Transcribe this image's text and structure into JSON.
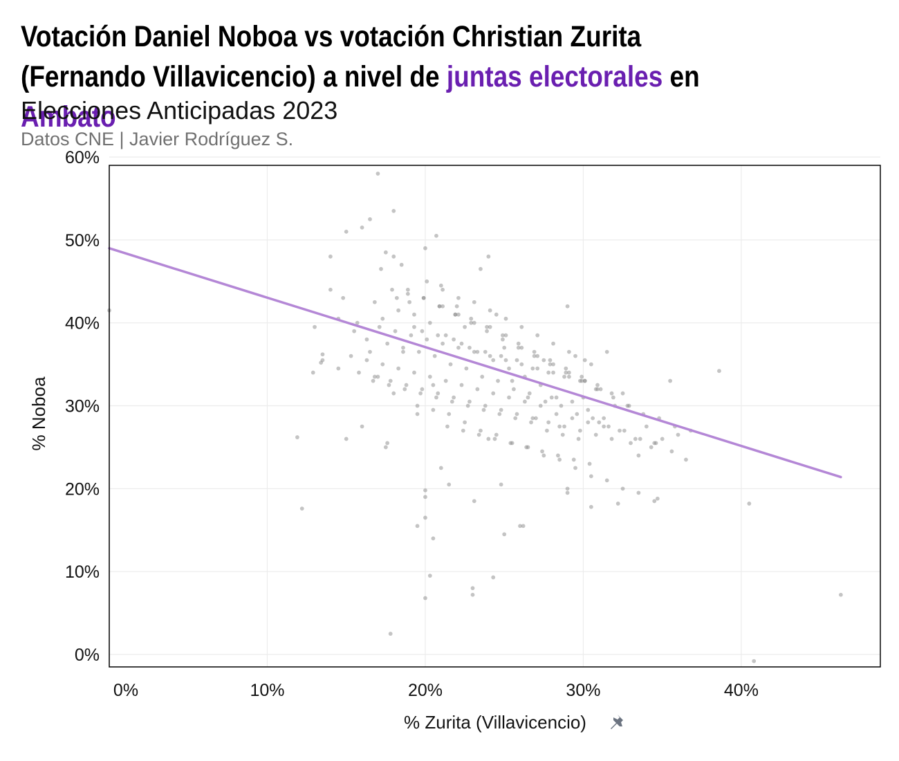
{
  "header": {
    "title_part1": "Votación Daniel Noboa vs votación Christian Zurita (Fernando Villavicencio) a nivel de ",
    "title_hl1": "juntas electorales",
    "title_part2": " en ",
    "title_hl2": "Ambato",
    "subtitle": "Elecciones Anticipadas 2023",
    "caption": "Datos CNE | Javier Rodríguez S."
  },
  "colors": {
    "highlight": "#6a1fb0",
    "trend_line": "#b487d6",
    "points": "#8a8a8a",
    "grid": "#ececec",
    "pin_icon": "#6b7380"
  },
  "icons": {
    "xlabel_icon": "pushpin-icon"
  },
  "chart_data": {
    "type": "scatter",
    "title": "Votación Daniel Noboa vs votación Christian Zurita (Fernando Villavicencio) a nivel de juntas electorales en Ambato",
    "subtitle": "Elecciones Anticipadas 2023",
    "xlabel": "% Zurita (Villavicencio)",
    "ylabel": "% Noboa",
    "xlim": [
      0,
      0.488
    ],
    "ylim": [
      -0.015,
      0.59
    ],
    "xticks": [
      0,
      0.1,
      0.2,
      0.3,
      0.4
    ],
    "xtick_labels": [
      "0%",
      "10%",
      "20%",
      "30%",
      "40%"
    ],
    "yticks": [
      0,
      0.1,
      0.2,
      0.3,
      0.4,
      0.5,
      0.6
    ],
    "ytick_labels": [
      "0%",
      "10%",
      "20%",
      "30%",
      "40%",
      "50%",
      "60%"
    ],
    "grid": true,
    "trend_line": {
      "x": [
        0,
        0.463
      ],
      "y": [
        0.49,
        0.214
      ]
    },
    "points_x": [
      0.0,
      0.119,
      0.122,
      0.129,
      0.13,
      0.134,
      0.135,
      0.14,
      0.14,
      0.145,
      0.15,
      0.15,
      0.155,
      0.16,
      0.16,
      0.165,
      0.165,
      0.17,
      0.17,
      0.175,
      0.175,
      0.178,
      0.18,
      0.18,
      0.18,
      0.185,
      0.19,
      0.195,
      0.2,
      0.2,
      0.2,
      0.203,
      0.205,
      0.21,
      0.21,
      0.215,
      0.22,
      0.225,
      0.23,
      0.235,
      0.24,
      0.24,
      0.245,
      0.25,
      0.25,
      0.255,
      0.26,
      0.265,
      0.27,
      0.275,
      0.28,
      0.285,
      0.29,
      0.29,
      0.295,
      0.3,
      0.305,
      0.31,
      0.315,
      0.32,
      0.325,
      0.33,
      0.335,
      0.34,
      0.345,
      0.35,
      0.355,
      0.36,
      0.365,
      0.386,
      0.405,
      0.408,
      0.463,
      0.2,
      0.23,
      0.231,
      0.243,
      0.176,
      0.205,
      0.207,
      0.2,
      0.195,
      0.262,
      0.248,
      0.29,
      0.305,
      0.322,
      0.347,
      0.182,
      0.193,
      0.172,
      0.168,
      0.157,
      0.148,
      0.135,
      0.145,
      0.163,
      0.176,
      0.186,
      0.198,
      0.208,
      0.218,
      0.228,
      0.238,
      0.248,
      0.258,
      0.268,
      0.278,
      0.288,
      0.298,
      0.308,
      0.318,
      0.328,
      0.338,
      0.348,
      0.358,
      0.368,
      0.211,
      0.221,
      0.231,
      0.241,
      0.251,
      0.261,
      0.271,
      0.281,
      0.291,
      0.301,
      0.311,
      0.173,
      0.183,
      0.193,
      0.203,
      0.213,
      0.223,
      0.233,
      0.243,
      0.253,
      0.263,
      0.273,
      0.283,
      0.293,
      0.303,
      0.313,
      0.189,
      0.199,
      0.209,
      0.219,
      0.229,
      0.239,
      0.249,
      0.259,
      0.269,
      0.279,
      0.289,
      0.299,
      0.309,
      0.319,
      0.329,
      0.167,
      0.177,
      0.187,
      0.197,
      0.207,
      0.217,
      0.227,
      0.237,
      0.247,
      0.257,
      0.267,
      0.277,
      0.287,
      0.297,
      0.153,
      0.163,
      0.173,
      0.183,
      0.193,
      0.203,
      0.213,
      0.223,
      0.233,
      0.243,
      0.253,
      0.263,
      0.273,
      0.283,
      0.293,
      0.303,
      0.313,
      0.323,
      0.333,
      0.343,
      0.179,
      0.189,
      0.199,
      0.209,
      0.219,
      0.229,
      0.239,
      0.249,
      0.259,
      0.269,
      0.279,
      0.289,
      0.299,
      0.309,
      0.195,
      0.205,
      0.215,
      0.225,
      0.235,
      0.245,
      0.255,
      0.265,
      0.275,
      0.285,
      0.295,
      0.305,
      0.315,
      0.325,
      0.335,
      0.345,
      0.201,
      0.211,
      0.221,
      0.231,
      0.241,
      0.251,
      0.261,
      0.271,
      0.281,
      0.291,
      0.301,
      0.186,
      0.196,
      0.206,
      0.216,
      0.226,
      0.236,
      0.246,
      0.256,
      0.266,
      0.276,
      0.286,
      0.296,
      0.306,
      0.316,
      0.326,
      0.336,
      0.346,
      0.356,
      0.214,
      0.224,
      0.234,
      0.244,
      0.254,
      0.264,
      0.274,
      0.284,
      0.294,
      0.304,
      0.171,
      0.181,
      0.191,
      0.201,
      0.211,
      0.221,
      0.231,
      0.241,
      0.251,
      0.261,
      0.271,
      0.281,
      0.291,
      0.301,
      0.158,
      0.168,
      0.178,
      0.188,
      0.198,
      0.208,
      0.218,
      0.228,
      0.238,
      0.248,
      0.258,
      0.268,
      0.278,
      0.288,
      0.298,
      0.308,
      0.318
    ],
    "points_y": [
      0.415,
      0.262,
      0.176,
      0.34,
      0.395,
      0.352,
      0.362,
      0.44,
      0.48,
      0.405,
      0.26,
      0.51,
      0.39,
      0.515,
      0.275,
      0.525,
      0.365,
      0.58,
      0.335,
      0.485,
      0.25,
      0.025,
      0.535,
      0.315,
      0.48,
      0.47,
      0.425,
      0.29,
      0.49,
      0.19,
      0.165,
      0.095,
      0.325,
      0.445,
      0.225,
      0.205,
      0.42,
      0.395,
      0.08,
      0.465,
      0.48,
      0.26,
      0.41,
      0.145,
      0.37,
      0.33,
      0.155,
      0.31,
      0.285,
      0.355,
      0.31,
      0.275,
      0.2,
      0.42,
      0.36,
      0.31,
      0.35,
      0.28,
      0.365,
      0.3,
      0.315,
      0.255,
      0.24,
      0.275,
      0.255,
      0.26,
      0.33,
      0.265,
      0.235,
      0.342,
      0.182,
      -0.008,
      0.072,
      0.068,
      0.072,
      0.185,
      0.093,
      0.255,
      0.14,
      0.505,
      0.198,
      0.155,
      0.155,
      0.205,
      0.195,
      0.178,
      0.182,
      0.188,
      0.43,
      0.41,
      0.465,
      0.425,
      0.4,
      0.43,
      0.355,
      0.345,
      0.38,
      0.375,
      0.365,
      0.39,
      0.385,
      0.38,
      0.37,
      0.365,
      0.36,
      0.355,
      0.345,
      0.34,
      0.335,
      0.33,
      0.32,
      0.315,
      0.3,
      0.29,
      0.285,
      0.275,
      0.27,
      0.42,
      0.41,
      0.4,
      0.395,
      0.385,
      0.37,
      0.36,
      0.35,
      0.34,
      0.33,
      0.32,
      0.405,
      0.415,
      0.395,
      0.4,
      0.385,
      0.375,
      0.365,
      0.355,
      0.345,
      0.335,
      0.325,
      0.31,
      0.305,
      0.295,
      0.285,
      0.44,
      0.43,
      0.42,
      0.41,
      0.4,
      0.39,
      0.38,
      0.37,
      0.36,
      0.35,
      0.34,
      0.33,
      0.32,
      0.31,
      0.3,
      0.33,
      0.325,
      0.32,
      0.315,
      0.31,
      0.305,
      0.3,
      0.295,
      0.29,
      0.285,
      0.28,
      0.27,
      0.265,
      0.26,
      0.36,
      0.355,
      0.35,
      0.345,
      0.34,
      0.335,
      0.33,
      0.325,
      0.32,
      0.315,
      0.31,
      0.305,
      0.3,
      0.29,
      0.285,
      0.28,
      0.275,
      0.27,
      0.26,
      0.25,
      0.44,
      0.435,
      0.43,
      0.42,
      0.41,
      0.405,
      0.395,
      0.385,
      0.375,
      0.365,
      0.355,
      0.345,
      0.335,
      0.325,
      0.3,
      0.295,
      0.29,
      0.28,
      0.27,
      0.265,
      0.255,
      0.25,
      0.24,
      0.235,
      0.225,
      0.215,
      0.21,
      0.2,
      0.195,
      0.185,
      0.45,
      0.44,
      0.43,
      0.425,
      0.415,
      0.405,
      0.395,
      0.385,
      0.375,
      0.365,
      0.355,
      0.37,
      0.365,
      0.36,
      0.35,
      0.345,
      0.335,
      0.33,
      0.32,
      0.315,
      0.305,
      0.3,
      0.29,
      0.285,
      0.275,
      0.27,
      0.26,
      0.255,
      0.245,
      0.275,
      0.27,
      0.265,
      0.26,
      0.255,
      0.25,
      0.245,
      0.24,
      0.235,
      0.23,
      0.395,
      0.39,
      0.385,
      0.38,
      0.375,
      0.37,
      0.365,
      0.36,
      0.355,
      0.35,
      0.345,
      0.34,
      0.335,
      0.33,
      0.34,
      0.335,
      0.33,
      0.325,
      0.32,
      0.315,
      0.31,
      0.305,
      0.3,
      0.295,
      0.29,
      0.285,
      0.28,
      0.275,
      0.27,
      0.265,
      0.26
    ]
  }
}
